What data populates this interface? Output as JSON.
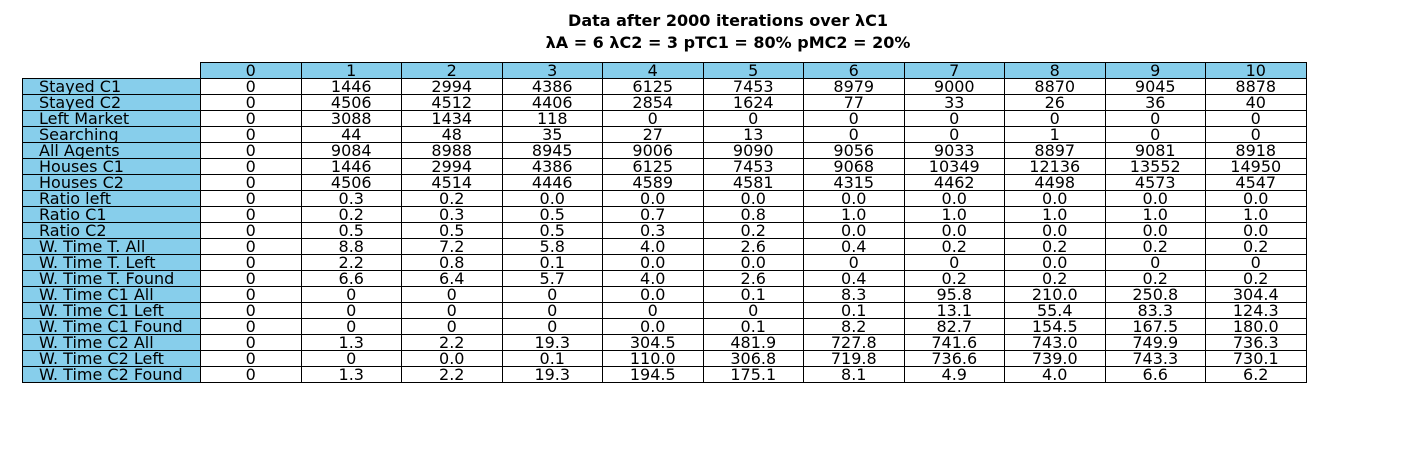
{
  "chart_data": {
    "type": "table",
    "title": "Data after 2000 iterations over λC1",
    "subtitle": "λA = 6 λC2 = 3 pTC1 = 80% pMC2 = 20%",
    "colors": {
      "header_fill": "#87ceeb",
      "border": "#000000"
    },
    "columns": [
      "0",
      "1",
      "2",
      "3",
      "4",
      "5",
      "6",
      "7",
      "8",
      "9",
      "10"
    ],
    "rows": [
      {
        "label": "Stayed C1",
        "cells": [
          "0",
          "1446",
          "2994",
          "4386",
          "6125",
          "7453",
          "8979",
          "9000",
          "8870",
          "9045",
          "8878"
        ]
      },
      {
        "label": "Stayed C2",
        "cells": [
          "0",
          "4506",
          "4512",
          "4406",
          "2854",
          "1624",
          "77",
          "33",
          "26",
          "36",
          "40"
        ]
      },
      {
        "label": "Left Market",
        "cells": [
          "0",
          "3088",
          "1434",
          "118",
          "0",
          "0",
          "0",
          "0",
          "0",
          "0",
          "0"
        ]
      },
      {
        "label": "Searching",
        "cells": [
          "0",
          "44",
          "48",
          "35",
          "27",
          "13",
          "0",
          "0",
          "1",
          "0",
          "0"
        ]
      },
      {
        "label": "All Agents",
        "cells": [
          "0",
          "9084",
          "8988",
          "8945",
          "9006",
          "9090",
          "9056",
          "9033",
          "8897",
          "9081",
          "8918"
        ]
      },
      {
        "label": "Houses C1",
        "cells": [
          "0",
          "1446",
          "2994",
          "4386",
          "6125",
          "7453",
          "9068",
          "10349",
          "12136",
          "13552",
          "14950"
        ]
      },
      {
        "label": "Houses C2",
        "cells": [
          "0",
          "4506",
          "4514",
          "4446",
          "4589",
          "4581",
          "4315",
          "4462",
          "4498",
          "4573",
          "4547"
        ]
      },
      {
        "label": "Ratio left",
        "cells": [
          "0",
          "0.3",
          "0.2",
          "0.0",
          "0.0",
          "0.0",
          "0.0",
          "0.0",
          "0.0",
          "0.0",
          "0.0"
        ]
      },
      {
        "label": "Ratio C1",
        "cells": [
          "0",
          "0.2",
          "0.3",
          "0.5",
          "0.7",
          "0.8",
          "1.0",
          "1.0",
          "1.0",
          "1.0",
          "1.0"
        ]
      },
      {
        "label": "Ratio C2",
        "cells": [
          "0",
          "0.5",
          "0.5",
          "0.5",
          "0.3",
          "0.2",
          "0.0",
          "0.0",
          "0.0",
          "0.0",
          "0.0"
        ]
      },
      {
        "label": "W. Time T. All",
        "cells": [
          "0",
          "8.8",
          "7.2",
          "5.8",
          "4.0",
          "2.6",
          "0.4",
          "0.2",
          "0.2",
          "0.2",
          "0.2"
        ]
      },
      {
        "label": "W. Time T. Left",
        "cells": [
          "0",
          "2.2",
          "0.8",
          "0.1",
          "0.0",
          "0.0",
          "0",
          "0",
          "0.0",
          "0",
          "0"
        ]
      },
      {
        "label": "W. Time T. Found",
        "cells": [
          "0",
          "6.6",
          "6.4",
          "5.7",
          "4.0",
          "2.6",
          "0.4",
          "0.2",
          "0.2",
          "0.2",
          "0.2"
        ]
      },
      {
        "label": "W. Time C1 All",
        "cells": [
          "0",
          "0",
          "0",
          "0",
          "0.0",
          "0.1",
          "8.3",
          "95.8",
          "210.0",
          "250.8",
          "304.4"
        ]
      },
      {
        "label": "W. Time C1 Left",
        "cells": [
          "0",
          "0",
          "0",
          "0",
          "0",
          "0",
          "0.1",
          "13.1",
          "55.4",
          "83.3",
          "124.3"
        ]
      },
      {
        "label": "W. Time C1 Found",
        "cells": [
          "0",
          "0",
          "0",
          "0",
          "0.0",
          "0.1",
          "8.2",
          "82.7",
          "154.5",
          "167.5",
          "180.0"
        ]
      },
      {
        "label": "W. Time C2 All",
        "cells": [
          "0",
          "1.3",
          "2.2",
          "19.3",
          "304.5",
          "481.9",
          "727.8",
          "741.6",
          "743.0",
          "749.9",
          "736.3"
        ]
      },
      {
        "label": "W. Time C2 Left",
        "cells": [
          "0",
          "0",
          "0.0",
          "0.1",
          "110.0",
          "306.8",
          "719.8",
          "736.6",
          "739.0",
          "743.3",
          "730.1"
        ]
      },
      {
        "label": "W. Time C2 Found",
        "cells": [
          "0",
          "1.3",
          "2.2",
          "19.3",
          "194.5",
          "175.1",
          "8.1",
          "4.9",
          "4.0",
          "6.6",
          "6.2"
        ]
      }
    ]
  }
}
